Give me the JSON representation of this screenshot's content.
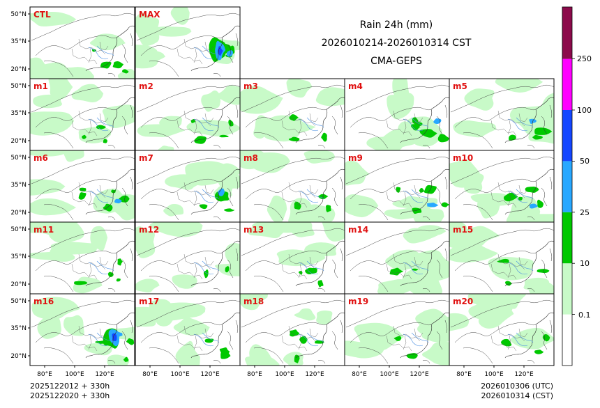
{
  "title": {
    "line1": "Rain 24h (mm)",
    "line2": "2026010214-2026010314 CST",
    "line3": "CMA-GEPS"
  },
  "panels": [
    "CTL",
    "MAX",
    "m1",
    "m2",
    "m3",
    "m4",
    "m5",
    "m6",
    "m7",
    "m8",
    "m9",
    "m10",
    "m11",
    "m12",
    "m13",
    "m14",
    "m15",
    "m16",
    "m17",
    "m18",
    "m19",
    "m20"
  ],
  "panel_intensity": {
    "CTL": 1,
    "MAX": 3,
    "m1": 1,
    "m2": 1,
    "m3": 1,
    "m4": 2,
    "m5": 2,
    "m6": 2,
    "m7": 2,
    "m8": 1,
    "m9": 2,
    "m10": 2,
    "m11": 1,
    "m12": 1,
    "m13": 1,
    "m14": 1,
    "m15": 1,
    "m16": 3,
    "m17": 1,
    "m18": 1,
    "m19": 1,
    "m20": 1
  },
  "lat_ticks": [
    "50°N",
    "35°N",
    "20°N"
  ],
  "lon_ticks": [
    "80°E",
    "100°E",
    "120°E"
  ],
  "colorbar": {
    "labels": [
      "0.1",
      "10",
      "25",
      "50",
      "100",
      "250"
    ],
    "colors": [
      "#ffffff",
      "#c8fac8",
      "#00c800",
      "#28a8ff",
      "#1446ff",
      "#ff00ff",
      "#8c0a4b"
    ]
  },
  "footer": {
    "left_line1": "2025122012 + 330h",
    "left_line2": "2025122020 + 330h",
    "right_line1": "2026010306 (UTC)",
    "right_line2": "2026010314 (CST)"
  },
  "colors": {
    "panel_label": "#e01010"
  }
}
